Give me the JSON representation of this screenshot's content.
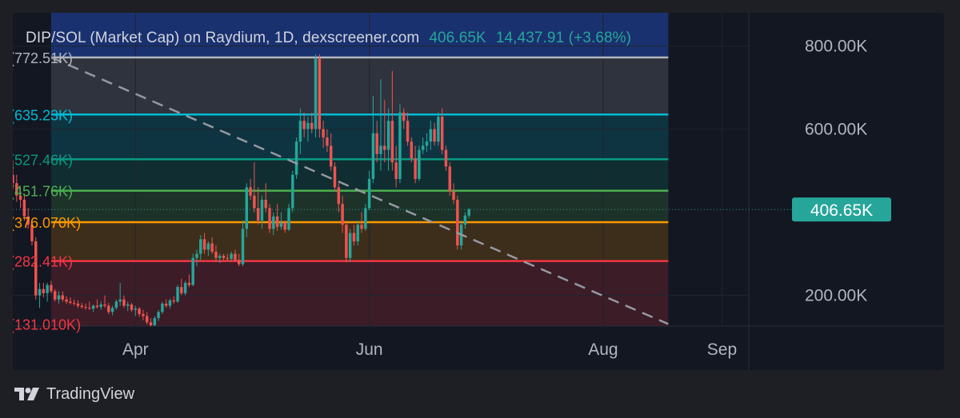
{
  "header": {
    "title": "DIP/SOL (Market Cap) on Raydium, 1D, dexscreener.com",
    "last_value": "406.65K",
    "price_change": "14,437.91 (+3.68%)"
  },
  "footer": {
    "brand": "TradingView",
    "logo_icon": "tradingview-logo-icon"
  },
  "colors": {
    "up": "#26a69a",
    "down": "#ef5350",
    "background": "#131722",
    "fib_1": "#b2b5be",
    "fib_0786": "#00bcd4",
    "fib_0618": "#089981",
    "fib_05": "#4caf50",
    "fib_0382": "#ff9800",
    "fib_0236": "#f23645"
  },
  "chart_data": {
    "type": "candlestick",
    "title": "DIP/SOL (Market Cap) on Raydium, 1D, dexscreener.com",
    "ylabel": "",
    "ylim": [
      126000,
      880000
    ],
    "y_ticks": [
      {
        "value": 200000,
        "label": "200.00K"
      },
      {
        "value": 600000,
        "label": "600.00K"
      },
      {
        "value": 800000,
        "label": "800.00K"
      }
    ],
    "x_ticks": [
      {
        "label": "Apr",
        "day": 0
      },
      {
        "label": "Jun",
        "day": 61
      },
      {
        "label": "Aug",
        "day": 122
      },
      {
        "label": "Sep",
        "day": 153
      }
    ],
    "x_range_days": [
      -32,
      160
    ],
    "current_price": {
      "value": 406650,
      "label": "406.65K"
    },
    "fib_levels": [
      {
        "value": 772510,
        "label": "(772.51K)",
        "color": "#b2b5be"
      },
      {
        "value": 635230,
        "label": "(635.23K)",
        "color": "#00bcd4"
      },
      {
        "value": 527460,
        "label": "(527.46K)",
        "color": "#089981"
      },
      {
        "value": 451760,
        "label": "(451.76K)",
        "color": "#4caf50"
      },
      {
        "value": 376070,
        "label": "(376.070K)",
        "color": "#ff9800"
      },
      {
        "value": 282410,
        "label": "(282.41K)",
        "color": "#f23645"
      },
      {
        "value": 131010,
        "label": "(131.010K)",
        "color": "#f23645"
      }
    ],
    "fib_extent_days": [
      -22,
      139
    ],
    "trendline": {
      "start": [
        -22,
        772510
      ],
      "end": [
        139,
        131010
      ]
    },
    "candles": [
      [
        -34,
        460000,
        480000,
        440000,
        470000
      ],
      [
        -33,
        470000,
        520000,
        440000,
        490000
      ],
      [
        -32,
        490000,
        525000,
        455000,
        470000
      ],
      [
        -31,
        470000,
        490000,
        425000,
        440000
      ],
      [
        -30,
        440000,
        460000,
        410000,
        430000
      ],
      [
        -29,
        430000,
        445000,
        380000,
        390000
      ],
      [
        -28,
        390000,
        410000,
        360000,
        370000
      ],
      [
        -27,
        370000,
        380000,
        320000,
        330000
      ],
      [
        -26,
        330000,
        340000,
        190000,
        200000
      ],
      [
        -25,
        200000,
        230000,
        170000,
        215000
      ],
      [
        -24,
        215000,
        230000,
        195000,
        205000
      ],
      [
        -23,
        205000,
        230000,
        185000,
        225000
      ],
      [
        -22,
        225000,
        235000,
        205000,
        210000
      ],
      [
        -21,
        210000,
        215000,
        185000,
        190000
      ],
      [
        -20,
        190000,
        210000,
        180000,
        200000
      ],
      [
        -19,
        200000,
        210000,
        185000,
        190000
      ],
      [
        -18,
        190000,
        198000,
        180000,
        185000
      ],
      [
        -17,
        185000,
        195000,
        178000,
        182000
      ],
      [
        -16,
        182000,
        190000,
        175000,
        180000
      ],
      [
        -15,
        180000,
        188000,
        170000,
        175000
      ],
      [
        -14,
        175000,
        182000,
        168000,
        172000
      ],
      [
        -13,
        172000,
        180000,
        165000,
        170000
      ],
      [
        -12,
        170000,
        185000,
        165000,
        168000
      ],
      [
        -11,
        168000,
        178000,
        160000,
        175000
      ],
      [
        -10,
        175000,
        190000,
        168000,
        172000
      ],
      [
        -9,
        172000,
        185000,
        165000,
        178000
      ],
      [
        -8,
        178000,
        200000,
        170000,
        175000
      ],
      [
        -7,
        175000,
        182000,
        155000,
        160000
      ],
      [
        -6,
        160000,
        175000,
        152000,
        170000
      ],
      [
        -5,
        170000,
        190000,
        165000,
        185000
      ],
      [
        -4,
        185000,
        230000,
        175000,
        190000
      ],
      [
        -3,
        190000,
        200000,
        170000,
        175000
      ],
      [
        -2,
        175000,
        185000,
        162000,
        178000
      ],
      [
        -1,
        178000,
        182000,
        160000,
        165000
      ],
      [
        0,
        165000,
        175000,
        150000,
        168000
      ],
      [
        1,
        168000,
        172000,
        148000,
        155000
      ],
      [
        2,
        155000,
        165000,
        140000,
        150000
      ],
      [
        3,
        150000,
        160000,
        130000,
        135000
      ],
      [
        4,
        135000,
        145000,
        125000,
        128000
      ],
      [
        5,
        128000,
        150000,
        126000,
        145000
      ],
      [
        6,
        145000,
        165000,
        138000,
        160000
      ],
      [
        7,
        160000,
        185000,
        155000,
        180000
      ],
      [
        8,
        180000,
        190000,
        170000,
        175000
      ],
      [
        9,
        175000,
        192000,
        168000,
        188000
      ],
      [
        10,
        188000,
        198000,
        180000,
        185000
      ],
      [
        11,
        185000,
        225000,
        182000,
        220000
      ],
      [
        12,
        220000,
        240000,
        200000,
        205000
      ],
      [
        13,
        205000,
        235000,
        200000,
        230000
      ],
      [
        14,
        230000,
        250000,
        220000,
        225000
      ],
      [
        15,
        225000,
        300000,
        222000,
        290000
      ],
      [
        16,
        290000,
        310000,
        270000,
        300000
      ],
      [
        17,
        300000,
        345000,
        285000,
        335000
      ],
      [
        18,
        335000,
        350000,
        300000,
        310000
      ],
      [
        19,
        310000,
        330000,
        295000,
        325000
      ],
      [
        20,
        325000,
        340000,
        300000,
        305000
      ],
      [
        21,
        305000,
        320000,
        280000,
        290000
      ],
      [
        22,
        290000,
        300000,
        278000,
        295000
      ],
      [
        23,
        295000,
        300000,
        285000,
        290000
      ],
      [
        24,
        290000,
        300000,
        283000,
        288000
      ],
      [
        25,
        288000,
        305000,
        282000,
        300000
      ],
      [
        26,
        300000,
        310000,
        280000,
        285000
      ],
      [
        27,
        285000,
        300000,
        270000,
        275000
      ],
      [
        28,
        275000,
        380000,
        270000,
        360000
      ],
      [
        29,
        360000,
        470000,
        340000,
        460000
      ],
      [
        30,
        460000,
        480000,
        430000,
        440000
      ],
      [
        31,
        440000,
        520000,
        400000,
        410000
      ],
      [
        32,
        410000,
        460000,
        370000,
        380000
      ],
      [
        33,
        380000,
        440000,
        360000,
        430000
      ],
      [
        34,
        430000,
        470000,
        400000,
        410000
      ],
      [
        35,
        410000,
        420000,
        350000,
        360000
      ],
      [
        36,
        360000,
        400000,
        345000,
        390000
      ],
      [
        37,
        390000,
        420000,
        355000,
        365000
      ],
      [
        38,
        365000,
        400000,
        358000,
        375000
      ],
      [
        39,
        375000,
        380000,
        350000,
        358000
      ],
      [
        40,
        358000,
        420000,
        355000,
        410000
      ],
      [
        41,
        410000,
        500000,
        400000,
        490000
      ],
      [
        42,
        490000,
        580000,
        480000,
        570000
      ],
      [
        43,
        570000,
        650000,
        540000,
        620000
      ],
      [
        44,
        620000,
        640000,
        580000,
        600000
      ],
      [
        45,
        600000,
        630000,
        570000,
        615000
      ],
      [
        46,
        615000,
        640000,
        590000,
        600000
      ],
      [
        47,
        600000,
        780000,
        580000,
        770000
      ],
      [
        48,
        770000,
        780000,
        580000,
        600000
      ],
      [
        49,
        600000,
        620000,
        555000,
        580000
      ],
      [
        50,
        580000,
        600000,
        545000,
        560000
      ],
      [
        51,
        560000,
        590000,
        500000,
        510000
      ],
      [
        52,
        510000,
        520000,
        450000,
        460000
      ],
      [
        53,
        460000,
        470000,
        400000,
        420000
      ],
      [
        54,
        420000,
        440000,
        350000,
        370000
      ],
      [
        55,
        370000,
        380000,
        280000,
        290000
      ],
      [
        56,
        290000,
        360000,
        280000,
        350000
      ],
      [
        57,
        350000,
        370000,
        320000,
        330000
      ],
      [
        58,
        330000,
        380000,
        320000,
        370000
      ],
      [
        59,
        370000,
        400000,
        350000,
        360000
      ],
      [
        60,
        360000,
        420000,
        355000,
        410000
      ],
      [
        61,
        410000,
        500000,
        405000,
        480000
      ],
      [
        62,
        480000,
        680000,
        470000,
        590000
      ],
      [
        63,
        590000,
        620000,
        520000,
        540000
      ],
      [
        64,
        540000,
        720000,
        500000,
        560000
      ],
      [
        65,
        560000,
        670000,
        520000,
        550000
      ],
      [
        66,
        550000,
        650000,
        500000,
        620000
      ],
      [
        67,
        620000,
        740000,
        500000,
        520000
      ],
      [
        68,
        520000,
        560000,
        460000,
        480000
      ],
      [
        69,
        480000,
        660000,
        470000,
        640000
      ],
      [
        70,
        640000,
        650000,
        600000,
        620000
      ],
      [
        71,
        620000,
        640000,
        560000,
        570000
      ],
      [
        72,
        570000,
        580000,
        520000,
        530000
      ],
      [
        73,
        530000,
        560000,
        470000,
        480000
      ],
      [
        74,
        480000,
        560000,
        475000,
        550000
      ],
      [
        75,
        550000,
        580000,
        540000,
        560000
      ],
      [
        76,
        560000,
        590000,
        545000,
        570000
      ],
      [
        77,
        570000,
        620000,
        550000,
        600000
      ],
      [
        78,
        600000,
        615000,
        560000,
        570000
      ],
      [
        79,
        570000,
        640000,
        560000,
        630000
      ],
      [
        80,
        630000,
        650000,
        540000,
        550000
      ],
      [
        81,
        550000,
        560000,
        500000,
        510000
      ],
      [
        82,
        510000,
        520000,
        440000,
        450000
      ],
      [
        83,
        450000,
        470000,
        420000,
        430000
      ],
      [
        84,
        430000,
        440000,
        310000,
        320000
      ],
      [
        85,
        320000,
        380000,
        310000,
        370000
      ],
      [
        86,
        370000,
        400000,
        360000,
        392000
      ],
      [
        87,
        392000,
        410000,
        385000,
        406650
      ]
    ]
  }
}
